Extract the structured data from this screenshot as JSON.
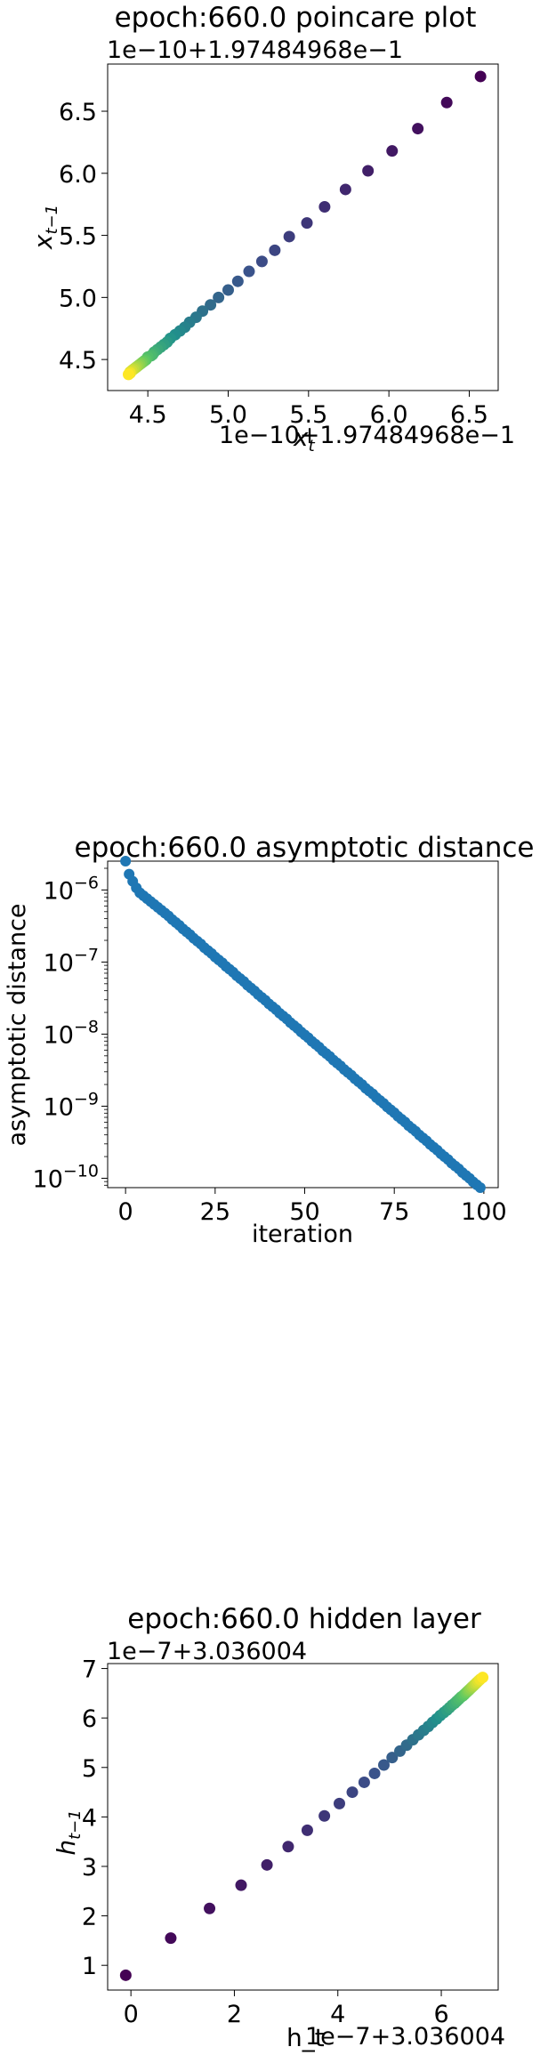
{
  "chart_data": [
    {
      "type": "scatter",
      "title": "epoch:660.0 poincare plot",
      "offset_top": "1e−10+1.97484968e−1",
      "offset_bottom": "1e−10+1.97484968e−1",
      "xlabel": "x_t",
      "ylabel": "x_{t−1}",
      "xlim": [
        4.25,
        6.68
      ],
      "ylim": [
        4.25,
        6.88
      ],
      "xticks": [
        4.5,
        5.0,
        5.5,
        6.0,
        6.5
      ],
      "xtick_labels": [
        "4.5",
        "5.0",
        "5.5",
        "6.0",
        "6.5"
      ],
      "yticks": [
        4.5,
        5.0,
        5.5,
        6.0,
        6.5
      ],
      "ytick_labels": [
        "4.5",
        "5.0",
        "5.5",
        "6.0",
        "6.5"
      ],
      "colormap": "viridis",
      "colors": [
        "#440154",
        "#3b528b",
        "#21918c",
        "#5ec962",
        "#fde725"
      ],
      "points": [
        {
          "x": 6.57,
          "y": 6.78
        },
        {
          "x": 6.36,
          "y": 6.57
        },
        {
          "x": 6.18,
          "y": 6.36
        },
        {
          "x": 6.02,
          "y": 6.18
        },
        {
          "x": 5.87,
          "y": 6.02
        },
        {
          "x": 5.73,
          "y": 5.87
        },
        {
          "x": 5.6,
          "y": 5.73
        },
        {
          "x": 5.49,
          "y": 5.6
        },
        {
          "x": 5.38,
          "y": 5.49
        },
        {
          "x": 5.29,
          "y": 5.38
        },
        {
          "x": 5.21,
          "y": 5.29
        },
        {
          "x": 5.13,
          "y": 5.21
        },
        {
          "x": 5.06,
          "y": 5.13
        },
        {
          "x": 5.0,
          "y": 5.06
        },
        {
          "x": 4.94,
          "y": 5.0
        },
        {
          "x": 4.89,
          "y": 4.94
        },
        {
          "x": 4.84,
          "y": 4.89
        },
        {
          "x": 4.8,
          "y": 4.84
        },
        {
          "x": 4.76,
          "y": 4.8
        },
        {
          "x": 4.73,
          "y": 4.76
        },
        {
          "x": 4.7,
          "y": 4.73
        },
        {
          "x": 4.67,
          "y": 4.7
        },
        {
          "x": 4.64,
          "y": 4.67
        },
        {
          "x": 4.62,
          "y": 4.64
        },
        {
          "x": 4.6,
          "y": 4.62
        },
        {
          "x": 4.58,
          "y": 4.6
        },
        {
          "x": 4.56,
          "y": 4.58
        },
        {
          "x": 4.54,
          "y": 4.56
        },
        {
          "x": 4.53,
          "y": 4.54
        },
        {
          "x": 4.52,
          "y": 4.53
        },
        {
          "x": 4.5,
          "y": 4.52
        },
        {
          "x": 4.49,
          "y": 4.5
        },
        {
          "x": 4.48,
          "y": 4.49
        },
        {
          "x": 4.47,
          "y": 4.48
        },
        {
          "x": 4.46,
          "y": 4.47
        },
        {
          "x": 4.45,
          "y": 4.46
        },
        {
          "x": 4.44,
          "y": 4.45
        },
        {
          "x": 4.43,
          "y": 4.44
        },
        {
          "x": 4.42,
          "y": 4.43
        },
        {
          "x": 4.41,
          "y": 4.42
        },
        {
          "x": 4.4,
          "y": 4.41
        },
        {
          "x": 4.39,
          "y": 4.4
        },
        {
          "x": 4.39,
          "y": 4.39
        },
        {
          "x": 4.38,
          "y": 4.38
        }
      ]
    },
    {
      "type": "scatter",
      "title": "epoch:660.0 asymptotic distance",
      "xlabel": "iteration",
      "ylabel": "asymptotic distance",
      "yscale": "log",
      "xlim": [
        -5,
        104
      ],
      "ylog_lim": [
        -10.13,
        -5.6
      ],
      "xticks": [
        0,
        25,
        50,
        75,
        100
      ],
      "xtick_labels": [
        "0",
        "25",
        "50",
        "75",
        "100"
      ],
      "yticks_log": [
        -10,
        -9,
        -8,
        -7,
        -6
      ],
      "ytick_mantissa": "10",
      "ytick_exponents": [
        "−10",
        "−9",
        "−8",
        "−7",
        "−6"
      ],
      "color": "#1f77b4",
      "x": {
        "start": 0,
        "end": 99,
        "step": 1
      },
      "y_log10": [
        -5.6,
        -5.78,
        -5.88,
        -5.97,
        -6.04,
        -6.08,
        -6.12,
        -6.16,
        -6.2,
        -6.24,
        -6.28,
        -6.32,
        -6.36,
        -6.41,
        -6.45,
        -6.49,
        -6.54,
        -6.58,
        -6.62,
        -6.67,
        -6.71,
        -6.75,
        -6.8,
        -6.84,
        -6.88,
        -6.93,
        -6.97,
        -7.01,
        -7.06,
        -7.1,
        -7.14,
        -7.19,
        -7.23,
        -7.27,
        -7.32,
        -7.36,
        -7.4,
        -7.45,
        -7.49,
        -7.53,
        -7.58,
        -7.62,
        -7.66,
        -7.71,
        -7.75,
        -7.79,
        -7.84,
        -7.88,
        -7.92,
        -7.97,
        -8.01,
        -8.05,
        -8.1,
        -8.14,
        -8.18,
        -8.23,
        -8.27,
        -8.31,
        -8.36,
        -8.4,
        -8.44,
        -8.49,
        -8.53,
        -8.57,
        -8.62,
        -8.66,
        -8.7,
        -8.75,
        -8.79,
        -8.83,
        -8.88,
        -8.92,
        -8.96,
        -9.01,
        -9.05,
        -9.09,
        -9.14,
        -9.18,
        -9.22,
        -9.27,
        -9.31,
        -9.35,
        -9.4,
        -9.44,
        -9.48,
        -9.53,
        -9.57,
        -9.61,
        -9.66,
        -9.7,
        -9.74,
        -9.79,
        -9.83,
        -9.87,
        -9.92,
        -9.96,
        -10.0,
        -10.05,
        -10.09,
        -10.13
      ]
    },
    {
      "type": "scatter",
      "title": "epoch:660.0 hidden layer",
      "offset_top": "1e−7+3.036004",
      "offset_bottom": "1e−7+3.036004",
      "xlabel": "h_t",
      "xlabel_display": "h_t",
      "ylabel": "h_{t−1}",
      "xlim": [
        -0.45,
        7.1
      ],
      "ylim": [
        0.5,
        7.1
      ],
      "xticks": [
        0,
        2,
        4,
        6
      ],
      "xtick_labels": [
        "0",
        "2",
        "4",
        "6"
      ],
      "yticks": [
        1,
        2,
        3,
        4,
        5,
        6,
        7
      ],
      "ytick_labels": [
        "1",
        "2",
        "3",
        "4",
        "5",
        "6",
        "7"
      ],
      "colormap": "viridis",
      "colors": [
        "#440154",
        "#3b528b",
        "#21918c",
        "#5ec962",
        "#fde725"
      ],
      "points": [
        {
          "x": -0.1,
          "y": 0.8
        },
        {
          "x": 0.77,
          "y": 1.55
        },
        {
          "x": 1.52,
          "y": 2.15
        },
        {
          "x": 2.13,
          "y": 2.62
        },
        {
          "x": 2.63,
          "y": 3.03
        },
        {
          "x": 3.04,
          "y": 3.4
        },
        {
          "x": 3.41,
          "y": 3.73
        },
        {
          "x": 3.74,
          "y": 4.02
        },
        {
          "x": 4.03,
          "y": 4.27
        },
        {
          "x": 4.28,
          "y": 4.5
        },
        {
          "x": 4.51,
          "y": 4.7
        },
        {
          "x": 4.71,
          "y": 4.88
        },
        {
          "x": 4.89,
          "y": 5.05
        },
        {
          "x": 5.05,
          "y": 5.2
        },
        {
          "x": 5.2,
          "y": 5.33
        },
        {
          "x": 5.33,
          "y": 5.45
        },
        {
          "x": 5.45,
          "y": 5.56
        },
        {
          "x": 5.56,
          "y": 5.66
        },
        {
          "x": 5.66,
          "y": 5.75
        },
        {
          "x": 5.75,
          "y": 5.83
        },
        {
          "x": 5.83,
          "y": 5.91
        },
        {
          "x": 5.91,
          "y": 5.98
        },
        {
          "x": 5.98,
          "y": 6.05
        },
        {
          "x": 6.05,
          "y": 6.11
        },
        {
          "x": 6.11,
          "y": 6.16
        },
        {
          "x": 6.16,
          "y": 6.21
        },
        {
          "x": 6.21,
          "y": 6.26
        },
        {
          "x": 6.26,
          "y": 6.3
        },
        {
          "x": 6.3,
          "y": 6.34
        },
        {
          "x": 6.34,
          "y": 6.38
        },
        {
          "x": 6.38,
          "y": 6.42
        },
        {
          "x": 6.42,
          "y": 6.45
        },
        {
          "x": 6.45,
          "y": 6.48
        },
        {
          "x": 6.48,
          "y": 6.51
        },
        {
          "x": 6.51,
          "y": 6.54
        },
        {
          "x": 6.54,
          "y": 6.57
        },
        {
          "x": 6.57,
          "y": 6.6
        },
        {
          "x": 6.6,
          "y": 6.63
        },
        {
          "x": 6.63,
          "y": 6.66
        },
        {
          "x": 6.66,
          "y": 6.69
        },
        {
          "x": 6.69,
          "y": 6.72
        },
        {
          "x": 6.72,
          "y": 6.75
        },
        {
          "x": 6.75,
          "y": 6.78
        },
        {
          "x": 6.8,
          "y": 6.82
        }
      ]
    }
  ]
}
